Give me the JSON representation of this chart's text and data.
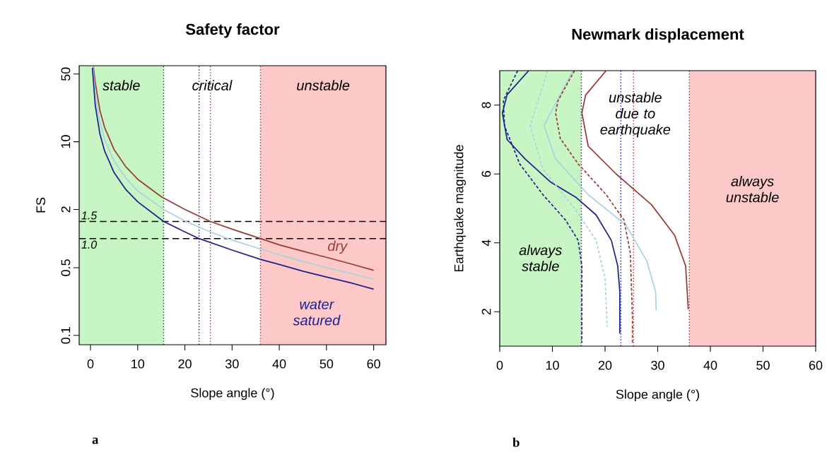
{
  "chart_data": [
    {
      "type": "line",
      "title": "Safety factor",
      "xlabel": "Slope angle (°)",
      "ylabel": "FS",
      "log": "y",
      "xlim": [
        -2.4,
        62.6
      ],
      "ylim": [
        0.08,
        61
      ],
      "xticks": [
        0,
        10,
        20,
        30,
        40,
        50,
        60
      ],
      "yticks": [
        0.1,
        0.5,
        2,
        10,
        50
      ],
      "series": [
        {
          "name": "dry",
          "color": "#9b3b36",
          "x": [
            0.6,
            1,
            2,
            3,
            5,
            7.5,
            10,
            15,
            20,
            25.4,
            30,
            36,
            40,
            45,
            50,
            55,
            60
          ],
          "values": [
            60,
            41,
            21,
            14,
            8.3,
            5.5,
            4.1,
            2.7,
            2.0,
            1.5,
            1.25,
            1.0,
            0.86,
            0.74,
            0.64,
            0.55,
            0.47
          ]
        },
        {
          "color": "#a9d3dd",
          "x": [
            0.5,
            1,
            2,
            3,
            5,
            7.5,
            10,
            15.5,
            20,
            25,
            29,
            36,
            40,
            45,
            50,
            55,
            60
          ],
          "values": [
            60,
            32,
            16,
            10.5,
            6.3,
            4.2,
            3.1,
            2.0,
            1.52,
            1.19,
            1.0,
            0.78,
            0.68,
            0.58,
            0.5,
            0.44,
            0.38
          ]
        },
        {
          "name": "water satured",
          "color": "#1f1f8f",
          "x": [
            0.4,
            1,
            2,
            3,
            5,
            7.5,
            10,
            15.5,
            20,
            23,
            30,
            36,
            40,
            45,
            50,
            55,
            60
          ],
          "values": [
            58,
            24,
            12,
            8,
            4.8,
            3.2,
            2.4,
            1.5,
            1.17,
            1.0,
            0.76,
            0.61,
            0.54,
            0.46,
            0.4,
            0.35,
            0.3
          ]
        }
      ],
      "bands": [
        {
          "axis": "x",
          "from": -2.4,
          "to": 15.5,
          "label": "stable",
          "color": "#c8f5c4"
        },
        {
          "axis": "x",
          "from": 15.5,
          "to": 36,
          "label": "critical",
          "color": "#ffffff"
        },
        {
          "axis": "x",
          "from": 36,
          "to": 62.6,
          "label": "unstable",
          "color": "#fcc8c8"
        }
      ],
      "ref_lines": [
        {
          "axis": "y",
          "value": 1.5,
          "label": "1.5",
          "line_style": "dashed",
          "color": "#000000"
        },
        {
          "axis": "y",
          "value": 1,
          "label": "1.0",
          "line_style": "dashed",
          "color": "#000000"
        },
        {
          "axis": "x",
          "value": 15.5,
          "line_style": "dotted",
          "color": "#333333"
        },
        {
          "axis": "x",
          "value": 23,
          "line_style": "dotted",
          "color": "#1f1f8f"
        },
        {
          "axis": "x",
          "value": 25.4,
          "line_style": "dotted",
          "color": "#9b3b36"
        },
        {
          "axis": "x",
          "value": 36,
          "line_style": "dotted",
          "color": "#7a4a4a"
        }
      ],
      "annotations": [
        "a"
      ]
    },
    {
      "type": "line",
      "title": "Newmark displacement",
      "xlabel": "Slope angle (°)",
      "ylabel": "Earthquake magnitude",
      "xlim": [
        0,
        60
      ],
      "ylim": [
        1,
        9
      ],
      "xticks": [
        0,
        10,
        20,
        30,
        40,
        50,
        60
      ],
      "yticks": [
        2,
        4,
        6,
        8
      ],
      "series": [
        {
          "color": "#1f1f8f",
          "line_style": "dashed",
          "x": [
            3.4,
            0.7,
            0.9,
            3.8,
            8.2,
            12.5,
            14.9,
            15.6,
            15.6
          ],
          "values": [
            9.0,
            8.14,
            7.4,
            6.29,
            5.4,
            4.66,
            4.07,
            3.33,
            1.1
          ]
        },
        {
          "color": "#1f1f8f",
          "x": [
            5.5,
            1.4,
            0.5,
            1.4,
            4.8,
            9.6,
            14.4,
            18.3,
            21.2,
            22.4,
            22.8,
            22.8
          ],
          "values": [
            9.0,
            8.3,
            7.77,
            7.0,
            6.44,
            5.77,
            5.33,
            4.81,
            4.07,
            3.33,
            2.59,
            1.37
          ]
        },
        {
          "color": "#a9d3dd",
          "line_style": "dashed",
          "x": [
            9.1,
            5.8,
            8.2,
            14.4,
            18.3,
            20.0,
            20.4
          ],
          "values": [
            9.0,
            7.4,
            6.14,
            4.96,
            4.07,
            2.96,
            1.56
          ]
        },
        {
          "color": "#a9d3dd",
          "x": [
            13.9,
            8.4,
            10.6,
            16.8,
            24.0,
            27.9,
            29.6,
            29.7
          ],
          "values": [
            9.0,
            7.4,
            6.44,
            5.4,
            4.51,
            3.48,
            2.59,
            2.04
          ]
        },
        {
          "color": "#9b3b36",
          "line_style": "dashed",
          "x": [
            14.2,
            11.1,
            10.6,
            11.5,
            14.9,
            20.2,
            23.6,
            24.8,
            25.2,
            25.2
          ],
          "values": [
            9.0,
            8.14,
            7.77,
            7.03,
            6.29,
            5.4,
            4.66,
            3.7,
            1.85,
            1.1
          ]
        },
        {
          "color": "#9b3b36",
          "x": [
            20.2,
            16.3,
            15.6,
            16.8,
            22.1,
            28.8,
            33.2,
            35.3,
            35.8
          ],
          "values": [
            9.0,
            8.29,
            7.77,
            6.81,
            6.0,
            5.11,
            4.22,
            3.33,
            2.07
          ]
        }
      ],
      "bands": [
        {
          "axis": "x",
          "from": 0,
          "to": 15.5,
          "label": "always stable",
          "color": "#c8f5c4"
        },
        {
          "axis": "x",
          "from": 15.5,
          "to": 36,
          "label": "unstable due to earthquake",
          "color": "#ffffff"
        },
        {
          "axis": "x",
          "from": 36,
          "to": 60,
          "label": "always unstable",
          "color": "#fcc8c8"
        }
      ],
      "ref_lines": [
        {
          "axis": "x",
          "value": 15.5,
          "line_style": "dotted",
          "color": "#333333"
        },
        {
          "axis": "x",
          "value": 23,
          "line_style": "dotted",
          "color": "#1f1f8f"
        },
        {
          "axis": "x",
          "value": 25.4,
          "line_style": "dotted",
          "color": "#9b3b36"
        },
        {
          "axis": "x",
          "value": 36,
          "line_style": "dotted",
          "color": "#9b3b36"
        }
      ],
      "annotations": [
        "b"
      ]
    }
  ]
}
